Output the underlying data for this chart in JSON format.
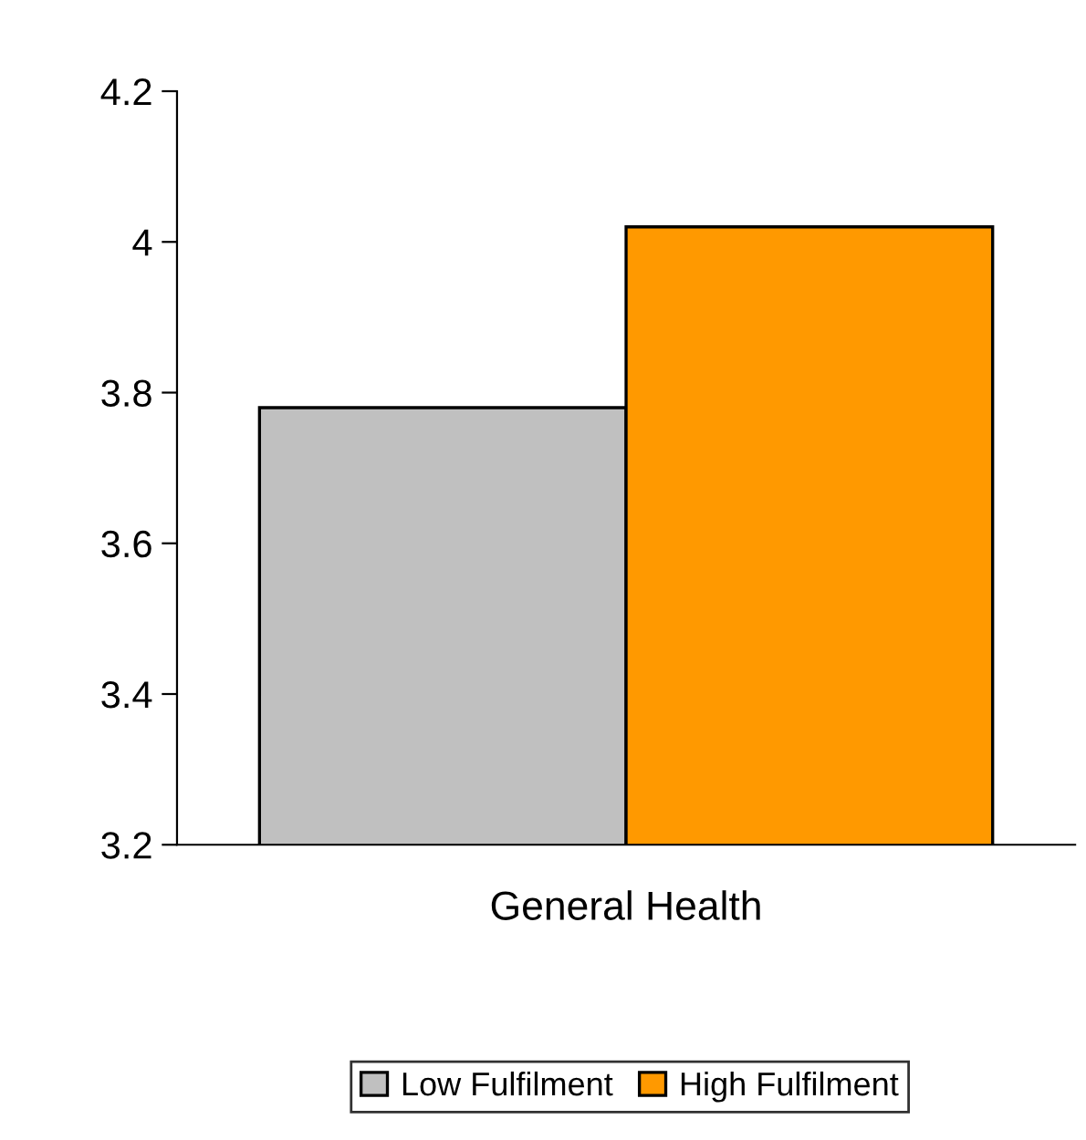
{
  "chart_data": {
    "type": "bar",
    "categories": [
      "General Health"
    ],
    "series": [
      {
        "name": "Low Fulfilment",
        "color": "#c0c0c0",
        "values": [
          3.78
        ]
      },
      {
        "name": "High Fulfilment",
        "color": "#ff9900",
        "values": [
          4.02
        ]
      }
    ],
    "ylim": [
      3.2,
      4.2
    ],
    "yticks": [
      3.2,
      3.4,
      3.6,
      3.8,
      {
        "value": 4.0,
        "label": "4"
      },
      4.2
    ],
    "grid": false,
    "legend": "bottom"
  }
}
